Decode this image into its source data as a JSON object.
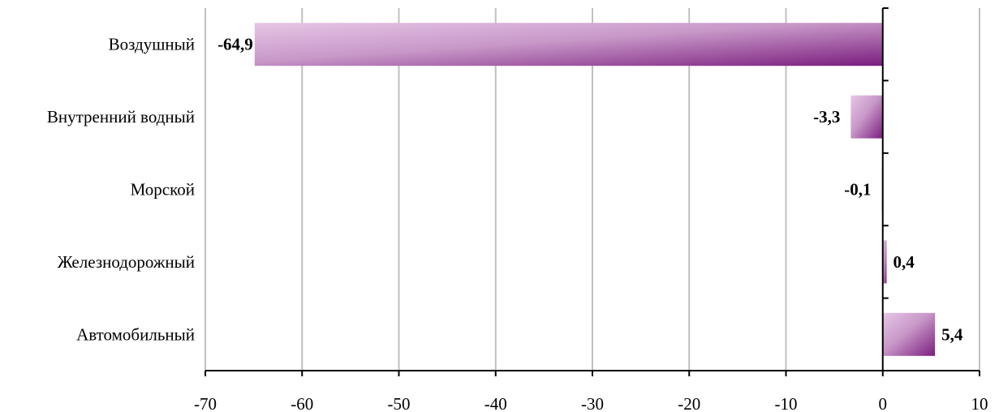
{
  "chart_data": {
    "type": "bar",
    "orientation": "horizontal",
    "categories": [
      "Воздушный",
      "Внутренний водный",
      "Морской",
      "Железнодорожный",
      "Автомобильный"
    ],
    "values": [
      -64.9,
      -3.3,
      -0.1,
      0.4,
      5.4
    ],
    "data_labels": [
      "-64,9",
      "-3,3",
      "-0,1",
      "0,4",
      "5,4"
    ],
    "xlim": [
      -70,
      10
    ],
    "x_ticks": [
      -70,
      -60,
      -50,
      -40,
      -30,
      -20,
      -10,
      0,
      10
    ],
    "x_tick_labels": [
      "-70",
      "-60",
      "-50",
      "-40",
      "-30",
      "-20",
      "-10",
      "0",
      "10"
    ],
    "grid": true,
    "legend": "none",
    "title": "",
    "xlabel": "",
    "ylabel": "",
    "colors": {
      "bar_light": "#e6c6e6",
      "bar_dark": "#7a1d7e",
      "grid": "#c0c0c0",
      "axis": "#000000"
    }
  }
}
